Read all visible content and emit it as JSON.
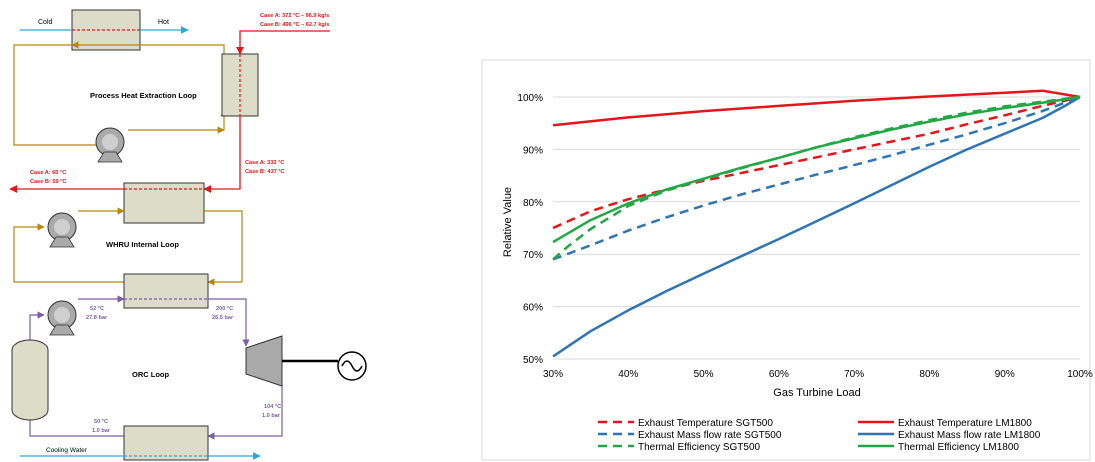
{
  "diagram": {
    "labels": {
      "cold": "Cold",
      "hot": "Hot",
      "process_loop": "Process Heat Extraction Loop",
      "whru_loop": "WHRU Internal Loop",
      "orc_loop": "ORC Loop",
      "cooling_water": "Cooling Water"
    },
    "annotations": {
      "exhaust_in_a": "Case A: 372 °C – 96.9 kg/s",
      "exhaust_in_b": "Case B: 496 °C – 62.7 kg/s",
      "mid_a": "Case A: 333 °C",
      "mid_b": "Case B: 437 °C",
      "out_a": "Case A: 60 °C",
      "out_b": "Case B: 59 °C",
      "orc_pump_t": "52 °C",
      "orc_pump_p": "27.8 bar",
      "orc_turb_in_t": "200 °C",
      "orc_turb_in_p": "26.5 bar",
      "orc_turb_out_t": "104 °C",
      "orc_turb_out_p": "1.0 bar",
      "orc_cond_t": "50 °C",
      "orc_cond_p": "1.0 bar"
    },
    "colors": {
      "exhaust": "#e8141a",
      "loop": "#b8860b",
      "orc": "#7b5ea7",
      "water": "#29a8e0",
      "hx_fill": "#dcdcc8"
    }
  },
  "chart_data": {
    "type": "line",
    "xlabel": "Gas Turbine Load",
    "ylabel": "Relative Value",
    "xlim": [
      30,
      100
    ],
    "ylim": [
      50,
      100
    ],
    "x_ticks": [
      "30%",
      "40%",
      "50%",
      "60%",
      "70%",
      "80%",
      "90%",
      "100%"
    ],
    "y_ticks": [
      "50%",
      "60%",
      "70%",
      "80%",
      "90%",
      "100%"
    ],
    "x_tick_values": [
      30,
      40,
      50,
      60,
      70,
      80,
      90,
      100
    ],
    "y_tick_values": [
      50,
      60,
      70,
      80,
      90,
      100
    ],
    "legend_placement": "bottom",
    "series": [
      {
        "name": "Exhaust Temperature SGT500",
        "color": "#e8141a",
        "dash": true,
        "x": [
          30,
          35,
          40,
          45,
          50,
          55,
          60,
          65,
          70,
          75,
          80,
          85,
          90,
          95,
          100
        ],
        "y": [
          75.0,
          78.2,
          80.5,
          82.3,
          84.0,
          85.5,
          87.0,
          88.5,
          90.0,
          91.5,
          93.0,
          94.8,
          96.5,
          98.3,
          100
        ]
      },
      {
        "name": "Exhaust Temperature LM1800",
        "color": "#e8141a",
        "dash": false,
        "x": [
          30,
          40,
          50,
          60,
          70,
          80,
          90,
          95,
          100
        ],
        "y": [
          94.6,
          96.1,
          97.3,
          98.3,
          99.3,
          100.1,
          100.8,
          101.2,
          100
        ]
      },
      {
        "name": "Exhaust Mass flow rate SGT500",
        "color": "#2e75b6",
        "dash": true,
        "x": [
          30,
          35,
          40,
          45,
          50,
          55,
          60,
          65,
          70,
          75,
          80,
          85,
          90,
          95,
          100
        ],
        "y": [
          69.0,
          71.7,
          74.5,
          77.0,
          79.3,
          81.4,
          83.3,
          85.2,
          87.0,
          88.9,
          90.9,
          92.9,
          95.0,
          97.3,
          100
        ]
      },
      {
        "name": "Exhaust Mass flow rate LM1800",
        "color": "#2e75b6",
        "dash": false,
        "x": [
          30,
          35,
          40,
          45,
          50,
          55,
          60,
          65,
          70,
          75,
          80,
          85,
          90,
          95,
          98,
          100
        ],
        "y": [
          50.5,
          55.3,
          59.3,
          62.9,
          66.3,
          69.6,
          72.9,
          76.3,
          79.7,
          83.2,
          86.7,
          90.0,
          93.0,
          96.0,
          98.3,
          100
        ]
      },
      {
        "name": "Thermal Efficiency SGT500",
        "color": "#21a845",
        "dash": true,
        "x": [
          30,
          32,
          35,
          38,
          40,
          45,
          50,
          55,
          60,
          65,
          70,
          75,
          80,
          85,
          90,
          95,
          100
        ],
        "y": [
          69.0,
          71.5,
          74.8,
          77.4,
          79.2,
          82.1,
          84.3,
          86.4,
          88.4,
          90.4,
          92.3,
          94.0,
          95.6,
          97.0,
          98.2,
          99.1,
          100
        ]
      },
      {
        "name": "Thermal Efficiency LM1800",
        "color": "#21a845",
        "dash": false,
        "x": [
          30,
          35,
          40,
          45,
          50,
          55,
          60,
          65,
          70,
          75,
          80,
          85,
          90,
          95,
          100
        ],
        "y": [
          72.3,
          76.5,
          79.7,
          82.3,
          84.4,
          86.5,
          88.4,
          90.4,
          92.1,
          93.8,
          95.3,
          96.7,
          97.9,
          98.9,
          100
        ]
      }
    ]
  }
}
